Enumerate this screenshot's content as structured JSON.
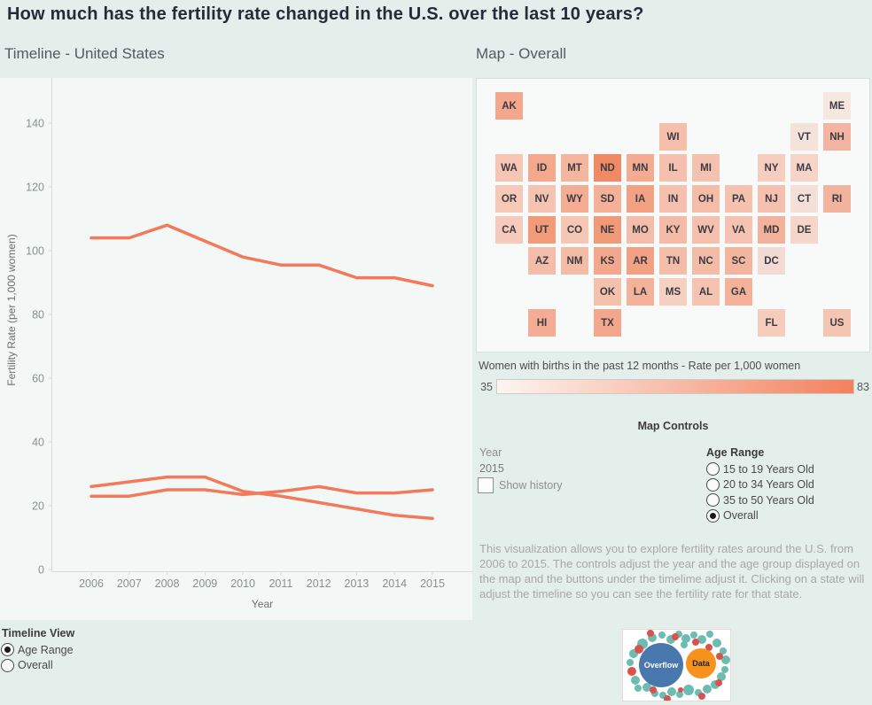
{
  "header": {
    "title": "How much has the fertility rate changed in the U.S. over the last 10 years?",
    "timeline_subtitle": "Timeline - United States",
    "map_subtitle": "Map - Overall"
  },
  "chart_data": [
    {
      "type": "line",
      "title": "Timeline - United States",
      "xlabel": "Year",
      "ylabel": "Fertility Rate (per 1,000 women)",
      "x": [
        2006,
        2007,
        2008,
        2009,
        2010,
        2011,
        2012,
        2013,
        2014,
        2015
      ],
      "yticks": [
        0,
        20,
        40,
        60,
        80,
        100,
        120,
        140
      ],
      "ylim": [
        0,
        154
      ],
      "grid": false,
      "legend_position": "none",
      "line_color": "#f3795a",
      "series": [
        {
          "name": "20 to 34 Years Old",
          "values": [
            104,
            104,
            108,
            103,
            98,
            95.5,
            95.5,
            91.5,
            91.5,
            89
          ]
        },
        {
          "name": "15 to 19 Years Old",
          "values": [
            26,
            27.5,
            29,
            29,
            24.5,
            23,
            21,
            19,
            17,
            16
          ]
        },
        {
          "name": "35 to 50 Years Old",
          "values": [
            23,
            23,
            25,
            25,
            23.5,
            24.5,
            26,
            24,
            24,
            25
          ]
        }
      ]
    },
    {
      "type": "heatmap",
      "title": "Map - Overall",
      "legend_title": "Women with births in the past 12 months - Rate per 1,000 women",
      "scale_min": 35,
      "scale_max": 83,
      "gradient": [
        "#fdf5f1",
        "#f3815c"
      ],
      "states": [
        {
          "abbr": "AK",
          "row": 1,
          "col": 1,
          "color": "#f4a78c"
        },
        {
          "abbr": "ME",
          "row": 1,
          "col": 11,
          "color": "#f7e7e1"
        },
        {
          "abbr": "WI",
          "row": 2,
          "col": 6,
          "color": "#f5bfab"
        },
        {
          "abbr": "VT",
          "row": 2,
          "col": 10,
          "color": "#f5e2db"
        },
        {
          "abbr": "NH",
          "row": 2,
          "col": 11,
          "color": "#f3b5a1"
        },
        {
          "abbr": "WA",
          "row": 3,
          "col": 1,
          "color": "#f6c5b3"
        },
        {
          "abbr": "ID",
          "row": 3,
          "col": 2,
          "color": "#f4a98e"
        },
        {
          "abbr": "MT",
          "row": 3,
          "col": 3,
          "color": "#f4b69f"
        },
        {
          "abbr": "ND",
          "row": 3,
          "col": 4,
          "color": "#f08a64"
        },
        {
          "abbr": "MN",
          "row": 3,
          "col": 5,
          "color": "#f4ab91"
        },
        {
          "abbr": "IL",
          "row": 3,
          "col": 6,
          "color": "#f5c1ae"
        },
        {
          "abbr": "MI",
          "row": 3,
          "col": 7,
          "color": "#f5c2b0"
        },
        {
          "abbr": "NY",
          "row": 3,
          "col": 9,
          "color": "#f6cdbf"
        },
        {
          "abbr": "MA",
          "row": 3,
          "col": 10,
          "color": "#f6d4c8"
        },
        {
          "abbr": "OR",
          "row": 4,
          "col": 1,
          "color": "#f6c9b8"
        },
        {
          "abbr": "NV",
          "row": 4,
          "col": 2,
          "color": "#f5c3b1"
        },
        {
          "abbr": "WY",
          "row": 4,
          "col": 3,
          "color": "#f4ad93"
        },
        {
          "abbr": "SD",
          "row": 4,
          "col": 4,
          "color": "#f4b098"
        },
        {
          "abbr": "IA",
          "row": 4,
          "col": 5,
          "color": "#f2a283"
        },
        {
          "abbr": "IN",
          "row": 4,
          "col": 6,
          "color": "#f5c1ae"
        },
        {
          "abbr": "OH",
          "row": 4,
          "col": 7,
          "color": "#f5bca8"
        },
        {
          "abbr": "PA",
          "row": 4,
          "col": 8,
          "color": "#f5c2b0"
        },
        {
          "abbr": "NJ",
          "row": 4,
          "col": 9,
          "color": "#f5c0ad"
        },
        {
          "abbr": "CT",
          "row": 4,
          "col": 10,
          "color": "#f5e0d9"
        },
        {
          "abbr": "RI",
          "row": 4,
          "col": 11,
          "color": "#f2b39f"
        },
        {
          "abbr": "CA",
          "row": 5,
          "col": 1,
          "color": "#f6cbbb"
        },
        {
          "abbr": "UT",
          "row": 5,
          "col": 2,
          "color": "#f19b78"
        },
        {
          "abbr": "CO",
          "row": 5,
          "col": 3,
          "color": "#f6c7b5"
        },
        {
          "abbr": "NE",
          "row": 5,
          "col": 4,
          "color": "#f19a77"
        },
        {
          "abbr": "MO",
          "row": 5,
          "col": 5,
          "color": "#f4bda9"
        },
        {
          "abbr": "KY",
          "row": 5,
          "col": 6,
          "color": "#f4bba6"
        },
        {
          "abbr": "WV",
          "row": 5,
          "col": 7,
          "color": "#f5c0ad"
        },
        {
          "abbr": "VA",
          "row": 5,
          "col": 8,
          "color": "#f5c3b1"
        },
        {
          "abbr": "MD",
          "row": 5,
          "col": 9,
          "color": "#f3b29c"
        },
        {
          "abbr": "DE",
          "row": 5,
          "col": 10,
          "color": "#f6d6ca"
        },
        {
          "abbr": "AZ",
          "row": 6,
          "col": 2,
          "color": "#f4bda9"
        },
        {
          "abbr": "NM",
          "row": 6,
          "col": 3,
          "color": "#f4bba6"
        },
        {
          "abbr": "KS",
          "row": 6,
          "col": 4,
          "color": "#f3a78c"
        },
        {
          "abbr": "AR",
          "row": 6,
          "col": 5,
          "color": "#f2a185"
        },
        {
          "abbr": "TN",
          "row": 6,
          "col": 6,
          "color": "#f4bda9"
        },
        {
          "abbr": "NC",
          "row": 6,
          "col": 7,
          "color": "#f4bca7"
        },
        {
          "abbr": "SC",
          "row": 6,
          "col": 8,
          "color": "#f4b59f"
        },
        {
          "abbr": "DC",
          "row": 6,
          "col": 9,
          "color": "#f3dbd4"
        },
        {
          "abbr": "OK",
          "row": 7,
          "col": 4,
          "color": "#f5c0ac"
        },
        {
          "abbr": "LA",
          "row": 7,
          "col": 5,
          "color": "#f4b29a"
        },
        {
          "abbr": "MS",
          "row": 7,
          "col": 6,
          "color": "#f6d0c0"
        },
        {
          "abbr": "AL",
          "row": 7,
          "col": 7,
          "color": "#f5c3b0"
        },
        {
          "abbr": "GA",
          "row": 7,
          "col": 8,
          "color": "#f4b29b"
        },
        {
          "abbr": "HI",
          "row": 8,
          "col": 2,
          "color": "#f4ad94"
        },
        {
          "abbr": "TX",
          "row": 8,
          "col": 4,
          "color": "#f3a88d"
        },
        {
          "abbr": "FL",
          "row": 8,
          "col": 9,
          "color": "#f6ccbc"
        },
        {
          "abbr": "US",
          "row": 8,
          "col": 11,
          "color": "#f5c5b4"
        }
      ]
    }
  ],
  "map_controls": {
    "title": "Map Controls",
    "year": {
      "label": "Year",
      "value": "2015",
      "show_history_label": "Show history",
      "show_history_checked": false
    },
    "age_range": {
      "label": "Age Range",
      "options": [
        {
          "label": "15 to 19 Years Old",
          "selected": false
        },
        {
          "label": "20 to 34 Years Old",
          "selected": false
        },
        {
          "label": "35 to 50 Years Old",
          "selected": false
        },
        {
          "label": "Overall",
          "selected": true
        }
      ]
    }
  },
  "description": "This visualization allows you to explore fertility rates around the U.S. from 2006 to 2015. The controls adjust the year and the age group displayed on the map and the buttons under the timelime adjust it. Clicking on a state will adjust the timeline so you can see the fertility rate for that state.",
  "timeline_view": {
    "label": "Timeline View",
    "options": [
      {
        "label": "Age Range",
        "selected": true
      },
      {
        "label": "Overall",
        "selected": false
      }
    ]
  },
  "logo": {
    "primary": "Overflow",
    "secondary": "Data",
    "primary_color": "#4878ad",
    "secondary_color": "#f6921e",
    "small_colors": [
      "#6cbcb2",
      "#d9534e"
    ]
  }
}
